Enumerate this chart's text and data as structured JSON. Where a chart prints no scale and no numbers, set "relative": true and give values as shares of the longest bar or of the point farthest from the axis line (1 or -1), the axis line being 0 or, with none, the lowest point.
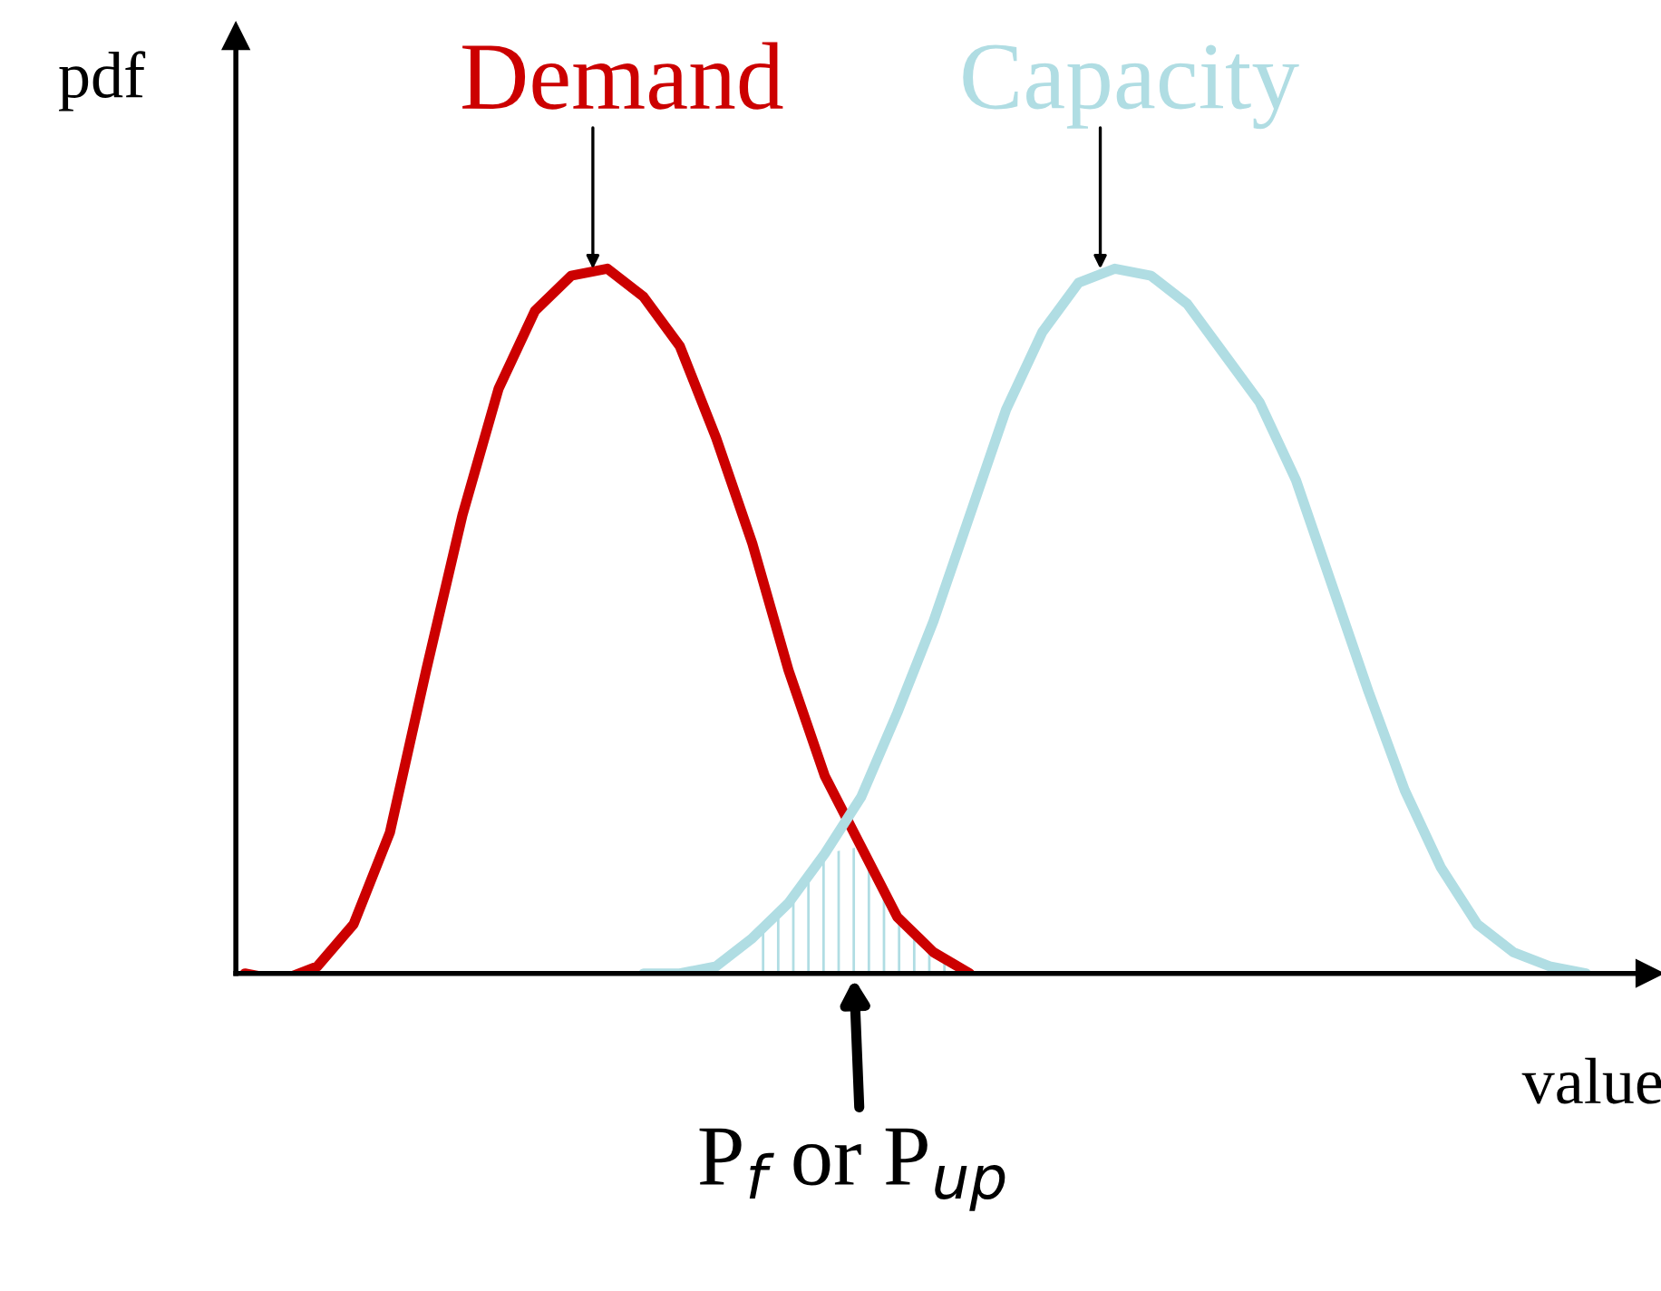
{
  "chart_data": {
    "type": "line",
    "relative": true,
    "xlabel": "value",
    "ylabel": "pdf",
    "categories": [
      null,
      null,
      null,
      null,
      null,
      null,
      null,
      null,
      null,
      null,
      null,
      null,
      null,
      null,
      null,
      null,
      null,
      null,
      null,
      null,
      null,
      null,
      null,
      null,
      null,
      null,
      null,
      null,
      null,
      null,
      null,
      null,
      null,
      null,
      null,
      null,
      null,
      null
    ],
    "series": [
      {
        "name": "Demand",
        "color": "#cc0000",
        "values": [
          0,
          -0.01,
          0.01,
          0.07,
          0.2,
          0.43,
          0.65,
          0.83,
          0.94,
          0.99,
          1.0,
          0.96,
          0.89,
          0.76,
          0.61,
          0.43,
          0.28,
          0.18,
          0.08,
          0.03,
          0,
          null,
          null,
          null,
          null,
          null,
          null,
          null,
          null,
          null,
          null,
          null,
          null,
          null,
          null,
          null,
          null,
          null
        ]
      },
      {
        "name": "Capacity",
        "color": "#b0dde3",
        "values": [
          null,
          null,
          null,
          null,
          null,
          null,
          null,
          null,
          null,
          null,
          null,
          0,
          0,
          0.01,
          0.05,
          0.1,
          0.17,
          0.25,
          0.37,
          0.5,
          0.65,
          0.8,
          0.91,
          0.98,
          1.0,
          0.99,
          0.95,
          0.88,
          0.81,
          0.7,
          0.55,
          0.4,
          0.26,
          0.15,
          0.07,
          0.03,
          0.01,
          0
        ]
      },
      {
        "type": "area",
        "color": "#b0dde3",
        "values": [
          null,
          null,
          null,
          null,
          null,
          null,
          null,
          null,
          null,
          null,
          null,
          null,
          null,
          null,
          0.05,
          0.1,
          0.17,
          0.18,
          0.08,
          0.03,
          0,
          null,
          null,
          null,
          null,
          null,
          null,
          null,
          null,
          null,
          null,
          null,
          null,
          null,
          null,
          null,
          null,
          null
        ]
      }
    ],
    "annotations": [
      "P$_{f}$ or P$_{up}$"
    ]
  }
}
